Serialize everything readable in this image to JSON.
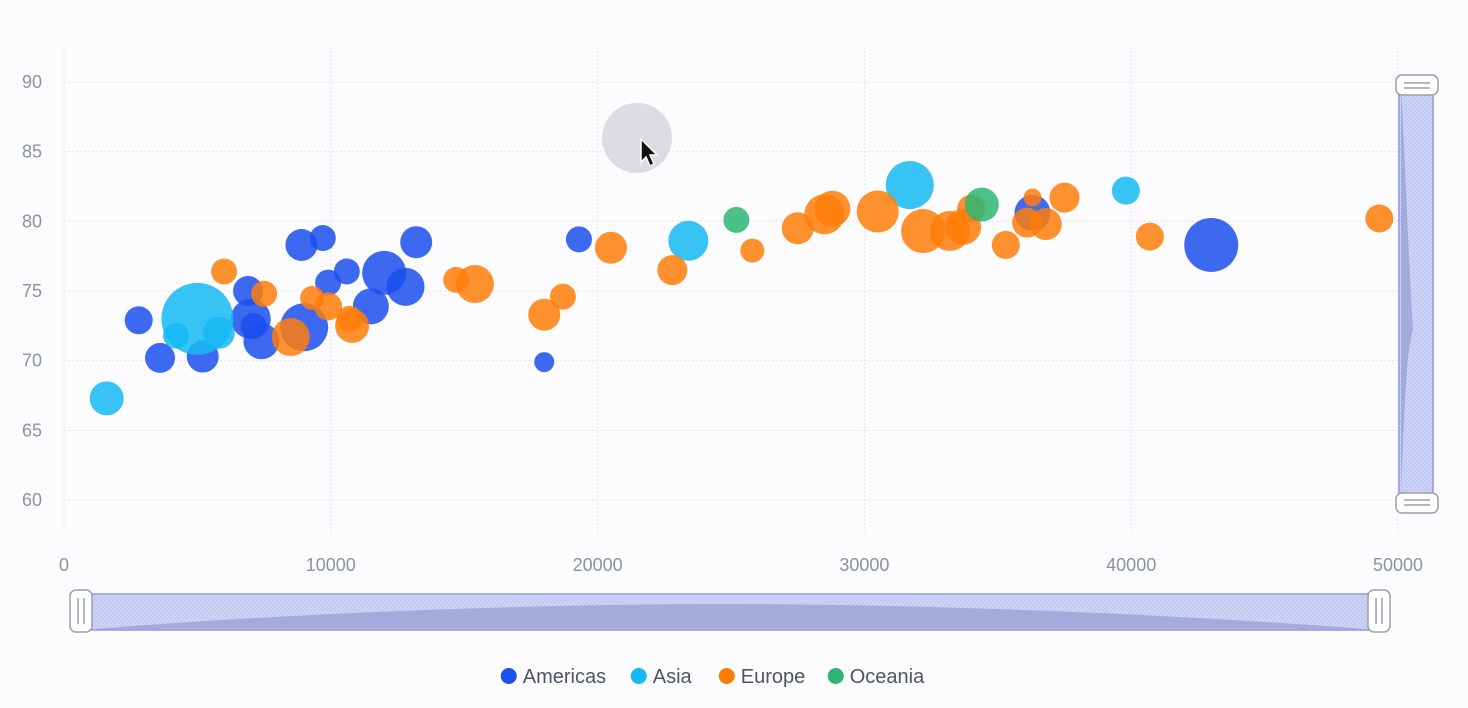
{
  "chart_data": {
    "type": "scatter",
    "title": "",
    "xlabel": "",
    "ylabel": "",
    "xlim": [
      0,
      50000
    ],
    "ylim": [
      57.5,
      92.5
    ],
    "x_ticks": [
      "0",
      "10000",
      "20000",
      "30000",
      "40000",
      "50000"
    ],
    "y_ticks": [
      "60",
      "65",
      "70",
      "75",
      "80",
      "85",
      "90"
    ],
    "grid": true,
    "legend_position": "bottom-center",
    "series": [
      {
        "name": "Americas",
        "color": "#1b4fee",
        "points": [
          {
            "x": 2800,
            "y": 72.9,
            "r": 14
          },
          {
            "x": 3600,
            "y": 70.2,
            "r": 15
          },
          {
            "x": 5200,
            "y": 70.3,
            "r": 16
          },
          {
            "x": 6900,
            "y": 75.0,
            "r": 15
          },
          {
            "x": 7000,
            "y": 73.0,
            "r": 20
          },
          {
            "x": 7400,
            "y": 71.4,
            "r": 18
          },
          {
            "x": 7100,
            "y": 72.5,
            "r": 13
          },
          {
            "x": 9000,
            "y": 72.4,
            "r": 24
          },
          {
            "x": 8900,
            "y": 78.3,
            "r": 16
          },
          {
            "x": 9700,
            "y": 78.8,
            "r": 13
          },
          {
            "x": 9900,
            "y": 75.6,
            "r": 13
          },
          {
            "x": 10600,
            "y": 76.4,
            "r": 13
          },
          {
            "x": 11500,
            "y": 73.9,
            "r": 18
          },
          {
            "x": 12000,
            "y": 76.3,
            "r": 22
          },
          {
            "x": 12800,
            "y": 75.3,
            "r": 19
          },
          {
            "x": 13200,
            "y": 78.5,
            "r": 16
          },
          {
            "x": 18000,
            "y": 69.9,
            "r": 10
          },
          {
            "x": 19300,
            "y": 78.7,
            "r": 13
          },
          {
            "x": 36300,
            "y": 80.6,
            "r": 18
          },
          {
            "x": 43000,
            "y": 78.3,
            "r": 27
          }
        ]
      },
      {
        "name": "Asia",
        "color": "#15b9f3",
        "points": [
          {
            "x": 1600,
            "y": 67.3,
            "r": 17
          },
          {
            "x": 4200,
            "y": 71.8,
            "r": 13
          },
          {
            "x": 5000,
            "y": 73.0,
            "r": 36
          },
          {
            "x": 5800,
            "y": 72.0,
            "r": 16
          },
          {
            "x": 23400,
            "y": 78.6,
            "r": 20
          },
          {
            "x": 31700,
            "y": 82.6,
            "r": 24
          },
          {
            "x": 39800,
            "y": 82.2,
            "r": 14
          }
        ]
      },
      {
        "name": "Europe",
        "color": "#ff7c09",
        "points": [
          {
            "x": 6000,
            "y": 76.4,
            "r": 13
          },
          {
            "x": 7500,
            "y": 74.8,
            "r": 13
          },
          {
            "x": 8500,
            "y": 71.7,
            "r": 19
          },
          {
            "x": 9300,
            "y": 74.5,
            "r": 12
          },
          {
            "x": 9900,
            "y": 73.9,
            "r": 14
          },
          {
            "x": 10800,
            "y": 72.5,
            "r": 17
          },
          {
            "x": 10700,
            "y": 73.0,
            "r": 13
          },
          {
            "x": 14700,
            "y": 75.8,
            "r": 13
          },
          {
            "x": 15400,
            "y": 75.5,
            "r": 19
          },
          {
            "x": 18000,
            "y": 73.3,
            "r": 16
          },
          {
            "x": 18700,
            "y": 74.6,
            "r": 13
          },
          {
            "x": 20500,
            "y": 78.1,
            "r": 16
          },
          {
            "x": 22800,
            "y": 76.5,
            "r": 15
          },
          {
            "x": 25800,
            "y": 77.9,
            "r": 12
          },
          {
            "x": 27500,
            "y": 79.5,
            "r": 16
          },
          {
            "x": 28500,
            "y": 80.5,
            "r": 20
          },
          {
            "x": 28800,
            "y": 80.9,
            "r": 18
          },
          {
            "x": 30500,
            "y": 80.7,
            "r": 21
          },
          {
            "x": 32200,
            "y": 79.3,
            "r": 22
          },
          {
            "x": 33200,
            "y": 79.3,
            "r": 20
          },
          {
            "x": 33700,
            "y": 79.6,
            "r": 18
          },
          {
            "x": 34000,
            "y": 80.9,
            "r": 14
          },
          {
            "x": 35300,
            "y": 78.3,
            "r": 14
          },
          {
            "x": 36100,
            "y": 79.9,
            "r": 15
          },
          {
            "x": 36300,
            "y": 81.7,
            "r": 9
          },
          {
            "x": 36800,
            "y": 79.8,
            "r": 16
          },
          {
            "x": 37500,
            "y": 81.7,
            "r": 15
          },
          {
            "x": 40700,
            "y": 78.9,
            "r": 14
          },
          {
            "x": 49300,
            "y": 80.2,
            "r": 14
          }
        ]
      },
      {
        "name": "Oceania",
        "color": "#2bb673",
        "points": [
          {
            "x": 25200,
            "y": 80.1,
            "r": 13
          },
          {
            "x": 34400,
            "y": 81.2,
            "r": 17
          }
        ]
      }
    ]
  },
  "ui": {
    "tooltip_color": "#d6d6dc",
    "slider_fill": "#c7cdf4",
    "slider_border": "#8d98e6",
    "slider_shadow": "#9ea4d6"
  }
}
